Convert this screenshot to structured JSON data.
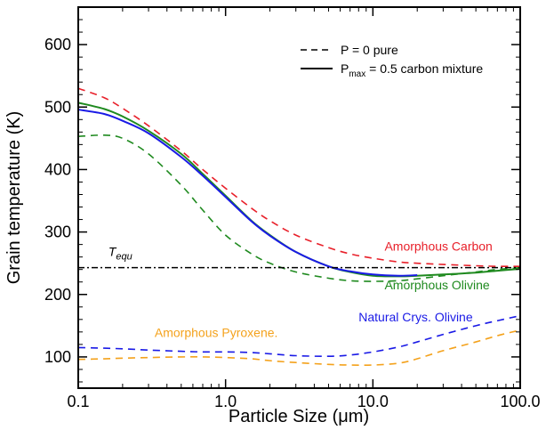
{
  "chart_data": {
    "type": "line",
    "xlabel": "Particle Size (μm)",
    "ylabel": "Grain temperature (K)",
    "xscale": "log",
    "xlim": [
      0.1,
      100.0
    ],
    "ylim": [
      50,
      660
    ],
    "x_ticks": [
      0.1,
      1.0,
      10.0,
      100.0
    ],
    "x_tick_labels": [
      "0.1",
      "1.0",
      "10.0",
      "100.0"
    ],
    "y_ticks": [
      100,
      200,
      300,
      400,
      500,
      600
    ],
    "y_tick_labels": [
      "100",
      "200",
      "300",
      "400",
      "500",
      "600"
    ],
    "grid": false,
    "legend": {
      "placement": "top-right",
      "entries": [
        {
          "style": "dashed",
          "label": "P = 0 pure"
        },
        {
          "style": "solid",
          "label_main": "P",
          "label_sub": "max",
          "label_rest": " = 0.5 carbon mixture"
        }
      ]
    },
    "annotations": [
      {
        "text": "Amorphous Carbon",
        "color": "#e8202a",
        "x": 12.0,
        "y": 270
      },
      {
        "text": "Amorphous Olivine",
        "color": "#1f8a1f",
        "x": 12.0,
        "y": 208
      },
      {
        "text": "Natural Crys. Olivine",
        "color": "#1a1ae6",
        "x": 8.0,
        "y": 157
      },
      {
        "text": "Amorphous Pyroxene.",
        "color": "#f4a21c",
        "x": 0.33,
        "y": 132
      },
      {
        "text_main": "T",
        "text_sub": "equ",
        "color": "#000000",
        "x": 0.16,
        "y": 262
      }
    ],
    "reference_line": {
      "name": "T_equ",
      "y": 243,
      "style": "dash-dot",
      "color": "#000000"
    },
    "series": [
      {
        "label": "Amorphous Carbon",
        "composition": "pure",
        "style": "dashed",
        "color": "#e8202a",
        "x": [
          0.1,
          0.15,
          0.2,
          0.3,
          0.5,
          0.7,
          1.0,
          1.5,
          2.0,
          3.0,
          5.0,
          7.0,
          10.0,
          15.0,
          20.0,
          30.0,
          50.0,
          70.0,
          100.0
        ],
        "y": [
          530,
          515,
          498,
          470,
          430,
          400,
          370,
          338,
          318,
          295,
          275,
          265,
          258,
          252,
          250,
          248,
          246,
          245,
          245
        ]
      },
      {
        "label": "Amorphous Olivine",
        "composition": "pure",
        "style": "dashed",
        "color": "#1f8a1f",
        "x": [
          0.1,
          0.15,
          0.2,
          0.3,
          0.5,
          0.7,
          1.0,
          1.5,
          2.0,
          3.0,
          5.0,
          7.0,
          10.0,
          15.0,
          20.0,
          30.0,
          50.0,
          70.0,
          100.0
        ],
        "y": [
          453,
          455,
          450,
          425,
          375,
          335,
          295,
          265,
          250,
          236,
          226,
          222,
          221,
          222,
          225,
          230,
          236,
          240,
          243
        ]
      },
      {
        "label": "Natural Crys. Olivine",
        "composition": "pure",
        "style": "dashed",
        "color": "#1a1ae6",
        "x": [
          0.1,
          0.15,
          0.2,
          0.3,
          0.5,
          0.7,
          1.0,
          1.5,
          2.0,
          3.0,
          5.0,
          7.0,
          10.0,
          15.0,
          20.0,
          30.0,
          50.0,
          70.0,
          100.0
        ],
        "y": [
          115,
          114,
          113,
          111,
          109,
          108,
          108,
          107,
          105,
          102,
          101,
          103,
          108,
          116,
          124,
          136,
          150,
          158,
          166
        ]
      },
      {
        "label": "Amorphous Pyroxene",
        "composition": "pure",
        "style": "dashed",
        "color": "#f4a21c",
        "x": [
          0.1,
          0.15,
          0.2,
          0.3,
          0.5,
          0.7,
          1.0,
          1.5,
          2.0,
          3.0,
          5.0,
          7.0,
          10.0,
          15.0,
          20.0,
          30.0,
          50.0,
          70.0,
          100.0
        ],
        "y": [
          96,
          97,
          98,
          99,
          100,
          100,
          99,
          97,
          94,
          91,
          88,
          87,
          87,
          90,
          97,
          110,
          124,
          134,
          143
        ]
      },
      {
        "label": "Amorphous Olivine",
        "composition": "Pmax = 0.5 carbon mixture",
        "style": "solid",
        "color": "#1f8a1f",
        "x": [
          0.1,
          0.15,
          0.2,
          0.3,
          0.5,
          0.7,
          1.0,
          1.5,
          2.0,
          3.0,
          5.0,
          7.0,
          10.0,
          15.0,
          20.0,
          30.0,
          50.0,
          70.0,
          100.0
        ],
        "y": [
          507,
          497,
          485,
          462,
          425,
          393,
          358,
          318,
          295,
          268,
          245,
          236,
          230,
          229,
          230,
          232,
          235,
          238,
          241
        ]
      },
      {
        "label": "Natural Crys. Olivine",
        "composition": "Pmax = 0.5 carbon mixture",
        "style": "solid",
        "color": "#1a1ae6",
        "x": [
          0.1,
          0.15,
          0.2,
          0.3,
          0.5,
          0.7,
          1.0,
          1.5,
          2.0,
          3.0,
          5.0,
          7.0,
          10.0,
          15.0,
          20.0
        ],
        "y": [
          496,
          489,
          478,
          458,
          420,
          390,
          356,
          317,
          294,
          268,
          245,
          237,
          232,
          230,
          231
        ]
      }
    ]
  }
}
